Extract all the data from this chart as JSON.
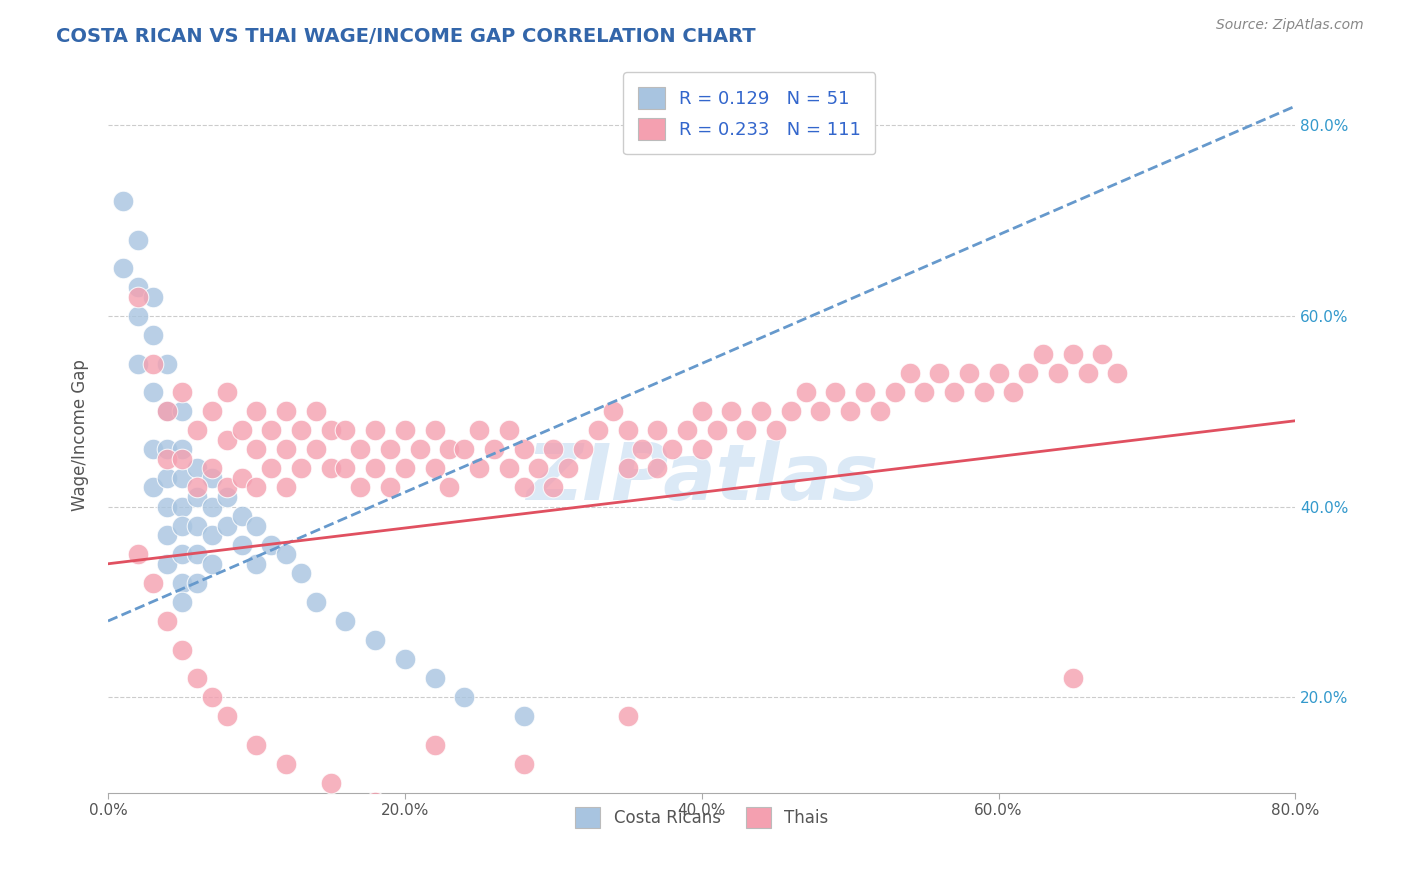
{
  "title": "COSTA RICAN VS THAI WAGE/INCOME GAP CORRELATION CHART",
  "source": "Source: ZipAtlas.com",
  "ylabel": "Wage/Income Gap",
  "watermark": "ZIPatlas",
  "xlim": [
    0.0,
    0.8
  ],
  "ylim": [
    0.1,
    0.85
  ],
  "xticks": [
    0.0,
    0.2,
    0.4,
    0.6,
    0.8
  ],
  "xtick_labels": [
    "0.0%",
    "20.0%",
    "40.0%",
    "60.0%",
    "80.0%"
  ],
  "yticks": [
    0.2,
    0.4,
    0.6,
    0.8
  ],
  "ytick_labels": [
    "20.0%",
    "40.0%",
    "60.0%",
    "80.0%"
  ],
  "cr_R": 0.129,
  "cr_N": 51,
  "thai_R": 0.233,
  "thai_N": 111,
  "cr_color": "#a8c4e0",
  "thai_color": "#f4a0b0",
  "cr_line_color": "#6699cc",
  "thai_line_color": "#e05060",
  "title_color": "#3366aa",
  "legend_R_color": "#3366cc",
  "background_color": "#ffffff",
  "grid_color": "#cccccc",
  "cr_x": [
    0.01,
    0.01,
    0.02,
    0.02,
    0.02,
    0.02,
    0.03,
    0.03,
    0.03,
    0.03,
    0.03,
    0.04,
    0.04,
    0.04,
    0.04,
    0.04,
    0.04,
    0.04,
    0.05,
    0.05,
    0.05,
    0.05,
    0.05,
    0.05,
    0.05,
    0.05,
    0.06,
    0.06,
    0.06,
    0.06,
    0.06,
    0.07,
    0.07,
    0.07,
    0.07,
    0.08,
    0.08,
    0.09,
    0.09,
    0.1,
    0.1,
    0.11,
    0.12,
    0.13,
    0.14,
    0.16,
    0.18,
    0.2,
    0.22,
    0.24,
    0.28
  ],
  "cr_y": [
    0.72,
    0.65,
    0.68,
    0.63,
    0.6,
    0.55,
    0.62,
    0.58,
    0.52,
    0.46,
    0.42,
    0.55,
    0.5,
    0.46,
    0.43,
    0.4,
    0.37,
    0.34,
    0.5,
    0.46,
    0.43,
    0.4,
    0.38,
    0.35,
    0.32,
    0.3,
    0.44,
    0.41,
    0.38,
    0.35,
    0.32,
    0.43,
    0.4,
    0.37,
    0.34,
    0.41,
    0.38,
    0.39,
    0.36,
    0.38,
    0.34,
    0.36,
    0.35,
    0.33,
    0.3,
    0.28,
    0.26,
    0.24,
    0.22,
    0.2,
    0.18
  ],
  "thai_x": [
    0.02,
    0.03,
    0.04,
    0.04,
    0.05,
    0.05,
    0.06,
    0.06,
    0.07,
    0.07,
    0.08,
    0.08,
    0.08,
    0.09,
    0.09,
    0.1,
    0.1,
    0.1,
    0.11,
    0.11,
    0.12,
    0.12,
    0.12,
    0.13,
    0.13,
    0.14,
    0.14,
    0.15,
    0.15,
    0.16,
    0.16,
    0.17,
    0.17,
    0.18,
    0.18,
    0.19,
    0.19,
    0.2,
    0.2,
    0.21,
    0.22,
    0.22,
    0.23,
    0.23,
    0.24,
    0.25,
    0.25,
    0.26,
    0.27,
    0.27,
    0.28,
    0.28,
    0.29,
    0.3,
    0.3,
    0.31,
    0.32,
    0.33,
    0.34,
    0.35,
    0.35,
    0.36,
    0.37,
    0.37,
    0.38,
    0.39,
    0.4,
    0.4,
    0.41,
    0.42,
    0.43,
    0.44,
    0.45,
    0.46,
    0.47,
    0.48,
    0.49,
    0.5,
    0.51,
    0.52,
    0.53,
    0.54,
    0.55,
    0.56,
    0.57,
    0.58,
    0.59,
    0.6,
    0.61,
    0.62,
    0.63,
    0.64,
    0.65,
    0.66,
    0.67,
    0.68,
    0.02,
    0.03,
    0.04,
    0.05,
    0.06,
    0.07,
    0.08,
    0.1,
    0.12,
    0.15,
    0.18,
    0.22,
    0.28,
    0.35,
    0.65
  ],
  "thai_y": [
    0.62,
    0.55,
    0.5,
    0.45,
    0.52,
    0.45,
    0.48,
    0.42,
    0.5,
    0.44,
    0.52,
    0.47,
    0.42,
    0.48,
    0.43,
    0.5,
    0.46,
    0.42,
    0.48,
    0.44,
    0.5,
    0.46,
    0.42,
    0.48,
    0.44,
    0.5,
    0.46,
    0.48,
    0.44,
    0.48,
    0.44,
    0.46,
    0.42,
    0.48,
    0.44,
    0.46,
    0.42,
    0.48,
    0.44,
    0.46,
    0.48,
    0.44,
    0.46,
    0.42,
    0.46,
    0.48,
    0.44,
    0.46,
    0.48,
    0.44,
    0.46,
    0.42,
    0.44,
    0.46,
    0.42,
    0.44,
    0.46,
    0.48,
    0.5,
    0.48,
    0.44,
    0.46,
    0.48,
    0.44,
    0.46,
    0.48,
    0.5,
    0.46,
    0.48,
    0.5,
    0.48,
    0.5,
    0.48,
    0.5,
    0.52,
    0.5,
    0.52,
    0.5,
    0.52,
    0.5,
    0.52,
    0.54,
    0.52,
    0.54,
    0.52,
    0.54,
    0.52,
    0.54,
    0.52,
    0.54,
    0.56,
    0.54,
    0.56,
    0.54,
    0.56,
    0.54,
    0.35,
    0.32,
    0.28,
    0.25,
    0.22,
    0.2,
    0.18,
    0.15,
    0.13,
    0.11,
    0.09,
    0.15,
    0.13,
    0.18,
    0.22
  ],
  "cr_line_x0": 0.0,
  "cr_line_y0": 0.28,
  "cr_line_x1": 0.8,
  "cr_line_y1": 0.82,
  "thai_line_x0": 0.0,
  "thai_line_y0": 0.34,
  "thai_line_x1": 0.8,
  "thai_line_y1": 0.49
}
